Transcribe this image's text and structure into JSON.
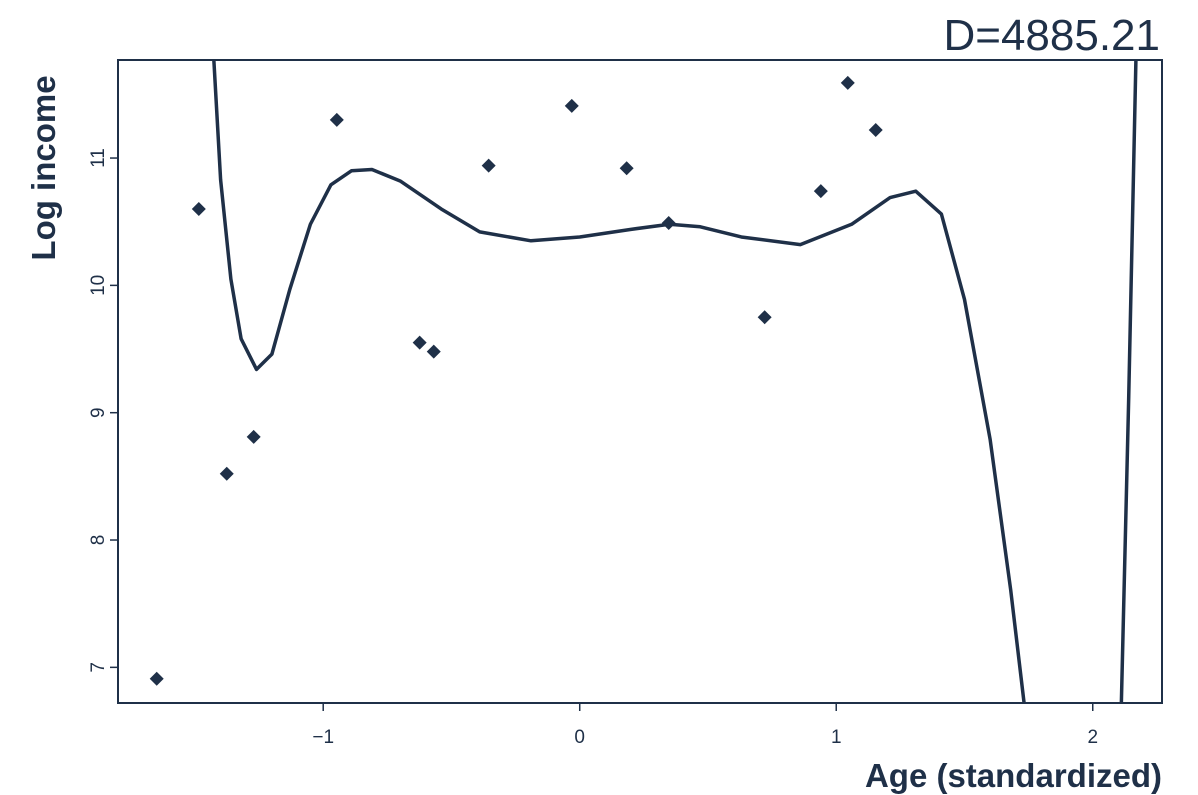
{
  "chart_data": {
    "type": "scatter",
    "annotation": "D=4885.21",
    "x_label": "Age (standardized)",
    "y_label": "Log income",
    "color": "#1f3048",
    "xlim": [
      -1.8,
      2.27
    ],
    "ylim": [
      6.72,
      11.77
    ],
    "xticks": [
      {
        "value": -1,
        "label": "−1"
      },
      0,
      1,
      2
    ],
    "yticks": [
      7,
      8,
      9,
      10,
      11
    ],
    "points": {
      "x": [
        -1.649,
        -1.485,
        -1.376,
        -1.271,
        -0.947,
        -0.624,
        -0.569,
        -0.355,
        -0.031,
        0.183,
        0.347,
        0.721,
        0.94,
        1.045,
        1.154
      ],
      "values": [
        6.91,
        10.6,
        8.52,
        8.81,
        11.3,
        9.55,
        9.48,
        10.94,
        11.41,
        10.92,
        10.49,
        9.75,
        10.74,
        11.59,
        11.22
      ]
    },
    "curve": {
      "x": [
        -1.43,
        -1.4,
        -1.36,
        -1.32,
        -1.26,
        -1.2,
        -1.13,
        -1.05,
        -0.97,
        -0.89,
        -0.81,
        -0.7,
        -0.54,
        -0.39,
        -0.19,
        0.0,
        0.2,
        0.35,
        0.47,
        0.63,
        0.86,
        1.06,
        1.21,
        1.31,
        1.41,
        1.5,
        1.6,
        1.68,
        1.74,
        2.11,
        2.14,
        2.17
      ],
      "values": [
        11.9,
        10.83,
        10.05,
        9.58,
        9.34,
        9.46,
        9.97,
        10.48,
        10.79,
        10.9,
        10.91,
        10.82,
        10.6,
        10.42,
        10.35,
        10.38,
        10.44,
        10.48,
        10.46,
        10.38,
        10.32,
        10.48,
        10.69,
        10.74,
        10.56,
        9.89,
        8.79,
        7.61,
        6.59,
        6.59,
        9.1,
        11.93
      ]
    }
  }
}
